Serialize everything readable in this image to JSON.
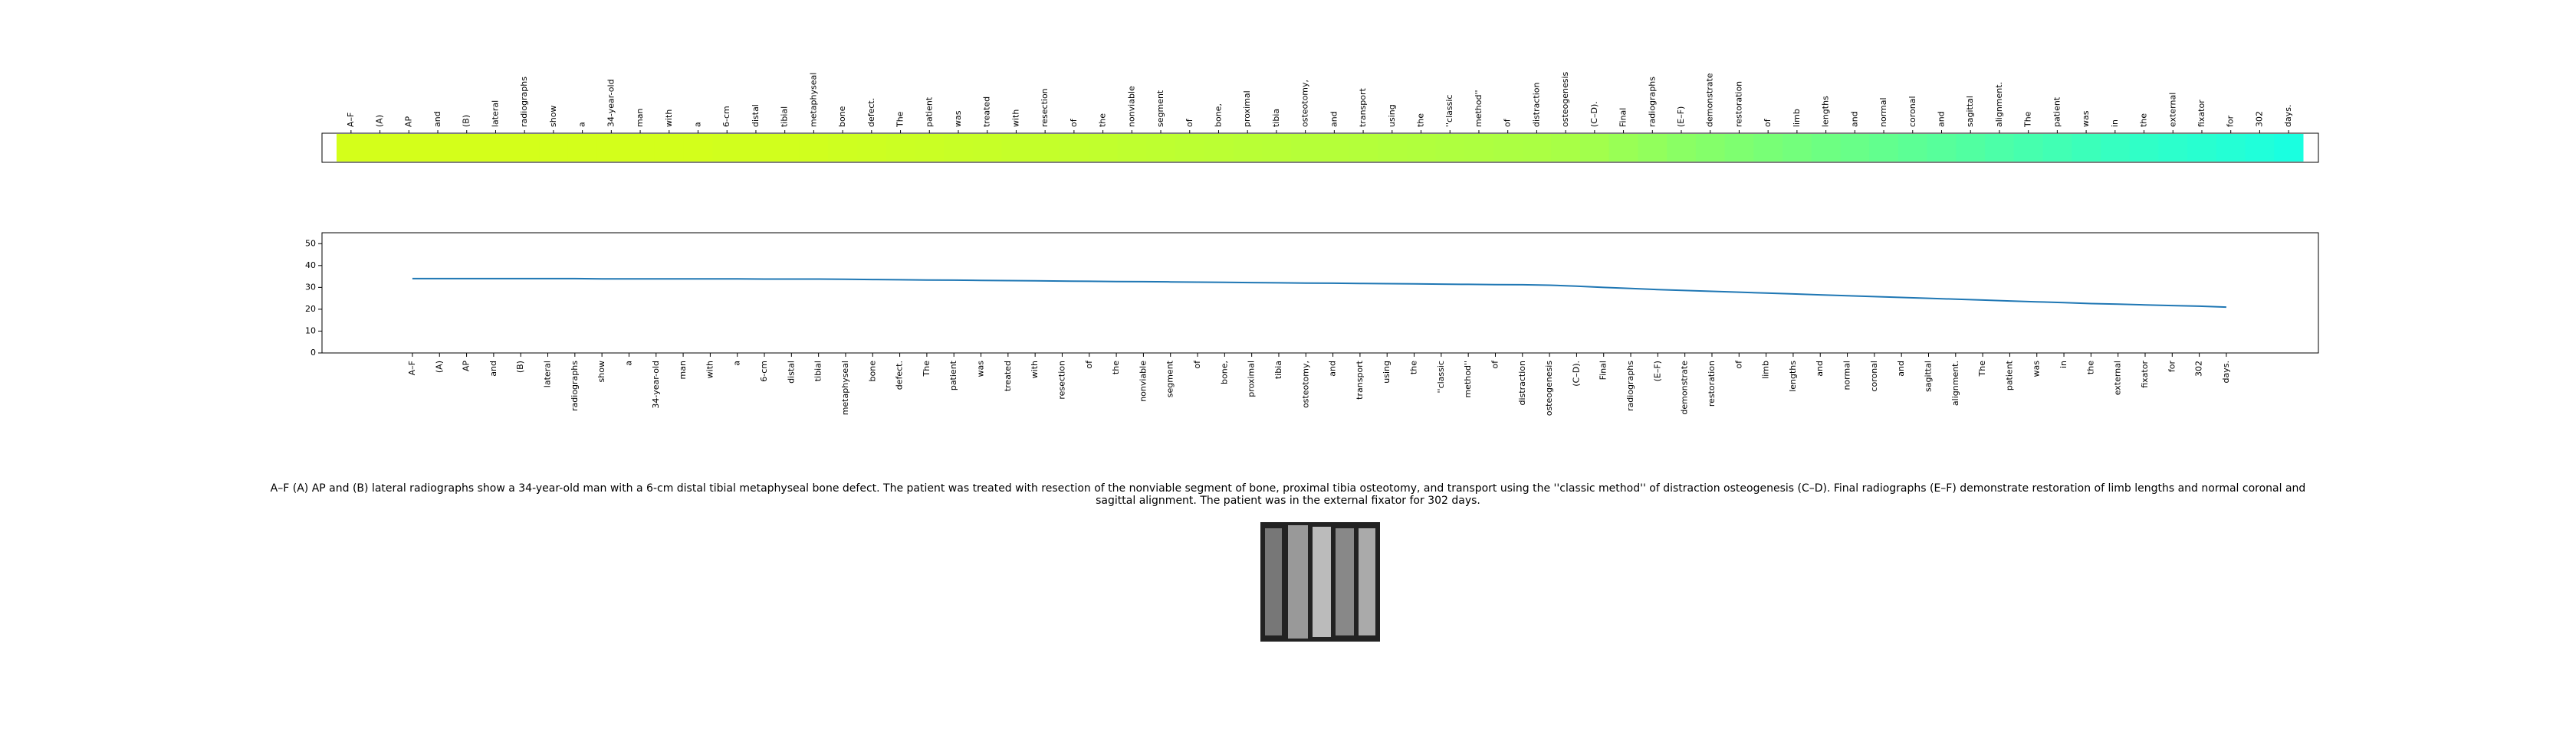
{
  "chart_data": {
    "type": "line",
    "categories": [
      "A–F",
      "(A)",
      "AP",
      "and",
      "(B)",
      "lateral",
      "radiographs",
      "show",
      "a",
      "34-year-old",
      "man",
      "with",
      "a",
      "6-cm",
      "distal",
      "tibial",
      "metaphyseal",
      "bone",
      "defect.",
      "The",
      "patient",
      "was",
      "treated",
      "with",
      "resection",
      "of",
      "the",
      "nonviable",
      "segment",
      "of",
      "bone,",
      "proximal",
      "tibia",
      "osteotomy,",
      "and",
      "transport",
      "using",
      "the",
      "''classic",
      "method''",
      "of",
      "distraction",
      "osteogenesis",
      "(C–D).",
      "Final",
      "radiographs",
      "(E–F)",
      "demonstrate",
      "restoration",
      "of",
      "limb",
      "lengths",
      "and",
      "normal",
      "coronal",
      "and",
      "sagittal",
      "alignment.",
      "The",
      "patient",
      "was",
      "in",
      "the",
      "external",
      "fixator",
      "for",
      "302",
      "days."
    ],
    "values": [
      34.0,
      34.0,
      34.0,
      34.0,
      34.0,
      34.0,
      34.0,
      33.9,
      33.9,
      33.9,
      33.9,
      33.9,
      33.9,
      33.8,
      33.8,
      33.8,
      33.7,
      33.6,
      33.5,
      33.4,
      33.3,
      33.2,
      33.1,
      33.0,
      32.9,
      32.8,
      32.7,
      32.6,
      32.5,
      32.4,
      32.3,
      32.2,
      32.1,
      32.0,
      31.9,
      31.8,
      31.7,
      31.6,
      31.5,
      31.4,
      31.3,
      31.2,
      31.0,
      30.6,
      30.0,
      29.5,
      29.0,
      28.6,
      28.2,
      27.8,
      27.4,
      27.0,
      26.6,
      26.2,
      25.8,
      25.4,
      25.0,
      24.6,
      24.2,
      23.8,
      23.4,
      23.0,
      22.6,
      22.3,
      22.0,
      21.7,
      21.4,
      21.0
    ],
    "color": "#1f77b4",
    "heatmap_colors": [
      "#1affe0",
      "#74ff7a",
      "#d4ff1a"
    ],
    "ylim": [
      0,
      55
    ],
    "yticks": [
      0,
      10,
      20,
      30,
      40,
      50
    ]
  },
  "caption": "A–F (A) AP and (B) lateral radiographs show a 34-year-old man with a 6-cm distal tibial metaphyseal bone defect. The patient was treated with resection of the nonviable segment of bone, proximal tibia osteotomy, and transport using the ''classic method'' of distraction osteogenesis (C–D). Final radiographs (E–F) demonstrate restoration of limb lengths and normal coronal and sagittal alignment. The patient was in the external fixator for 302 days."
}
